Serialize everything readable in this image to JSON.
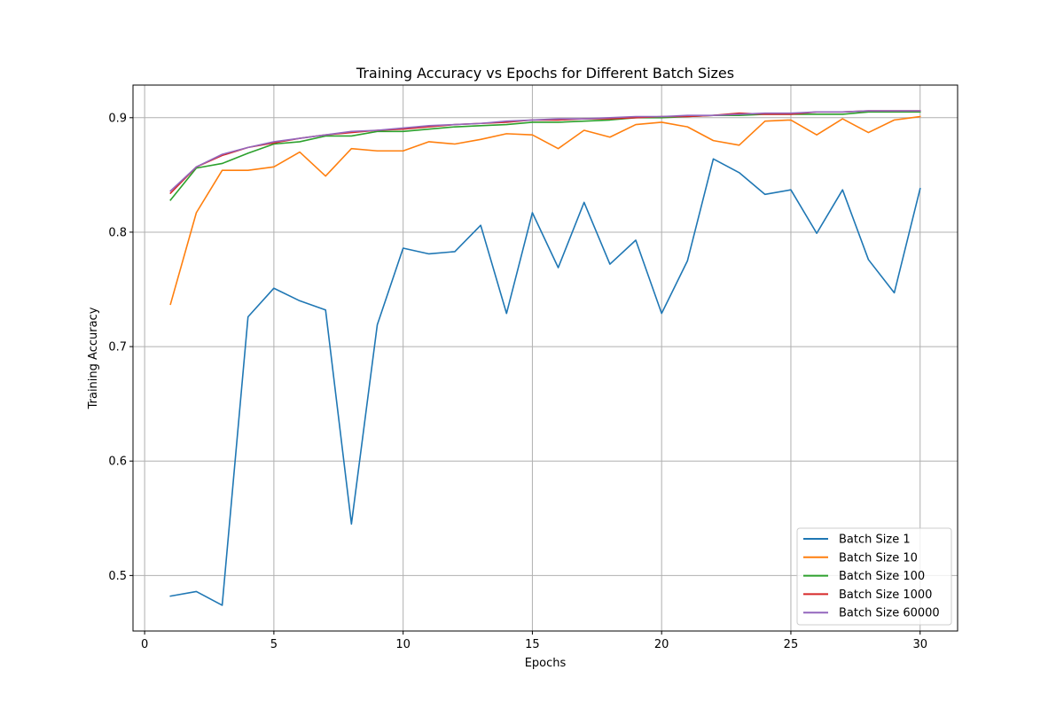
{
  "chart_data": {
    "type": "line",
    "title": "Training Accuracy vs Epochs for Different Batch Sizes",
    "xlabel": "Epochs",
    "ylabel": "Training Accuracy",
    "xlim": [
      -0.45,
      31.45
    ],
    "ylim": [
      0.4515,
      0.9285
    ],
    "xticks": [
      0,
      5,
      10,
      15,
      20,
      25,
      30
    ],
    "yticks": [
      0.5,
      0.6,
      0.7,
      0.8,
      0.9
    ],
    "grid": true,
    "legend_position": "lower right",
    "x": [
      1,
      2,
      3,
      4,
      5,
      6,
      7,
      8,
      9,
      10,
      11,
      12,
      13,
      14,
      15,
      16,
      17,
      18,
      19,
      20,
      21,
      22,
      23,
      24,
      25,
      26,
      27,
      28,
      29,
      30
    ],
    "series": [
      {
        "name": "Batch Size 1",
        "color": "#1f77b4",
        "values": [
          0.482,
          0.486,
          0.474,
          0.726,
          0.751,
          0.74,
          0.732,
          0.545,
          0.719,
          0.786,
          0.781,
          0.783,
          0.806,
          0.729,
          0.817,
          0.769,
          0.826,
          0.772,
          0.793,
          0.729,
          0.775,
          0.864,
          0.852,
          0.833,
          0.837,
          0.799,
          0.837,
          0.776,
          0.747,
          0.838
        ]
      },
      {
        "name": "Batch Size 10",
        "color": "#ff7f0e",
        "values": [
          0.737,
          0.817,
          0.854,
          0.854,
          0.857,
          0.87,
          0.849,
          0.873,
          0.871,
          0.871,
          0.879,
          0.877,
          0.881,
          0.886,
          0.885,
          0.873,
          0.889,
          0.883,
          0.894,
          0.896,
          0.892,
          0.88,
          0.876,
          0.897,
          0.898,
          0.885,
          0.899,
          0.887,
          0.898,
          0.901
        ]
      },
      {
        "name": "Batch Size 100",
        "color": "#2ca02c",
        "values": [
          0.828,
          0.856,
          0.86,
          0.869,
          0.877,
          0.879,
          0.884,
          0.884,
          0.888,
          0.888,
          0.89,
          0.892,
          0.893,
          0.894,
          0.896,
          0.896,
          0.897,
          0.898,
          0.9,
          0.9,
          0.901,
          0.902,
          0.902,
          0.903,
          0.903,
          0.903,
          0.903,
          0.905,
          0.905,
          0.905
        ]
      },
      {
        "name": "Batch Size 1000",
        "color": "#d62728",
        "values": [
          0.834,
          0.857,
          0.867,
          0.874,
          0.878,
          0.882,
          0.885,
          0.887,
          0.889,
          0.89,
          0.892,
          0.894,
          0.895,
          0.896,
          0.898,
          0.898,
          0.899,
          0.899,
          0.9,
          0.901,
          0.901,
          0.902,
          0.904,
          0.903,
          0.903,
          0.905,
          0.905,
          0.906,
          0.906,
          0.906
        ]
      },
      {
        "name": "Batch Size 60000",
        "color": "#9467bd",
        "values": [
          0.836,
          0.857,
          0.868,
          0.874,
          0.879,
          0.882,
          0.885,
          0.888,
          0.889,
          0.891,
          0.893,
          0.894,
          0.895,
          0.897,
          0.898,
          0.899,
          0.899,
          0.9,
          0.901,
          0.901,
          0.902,
          0.902,
          0.903,
          0.904,
          0.904,
          0.905,
          0.905,
          0.906,
          0.906,
          0.906
        ]
      }
    ]
  }
}
